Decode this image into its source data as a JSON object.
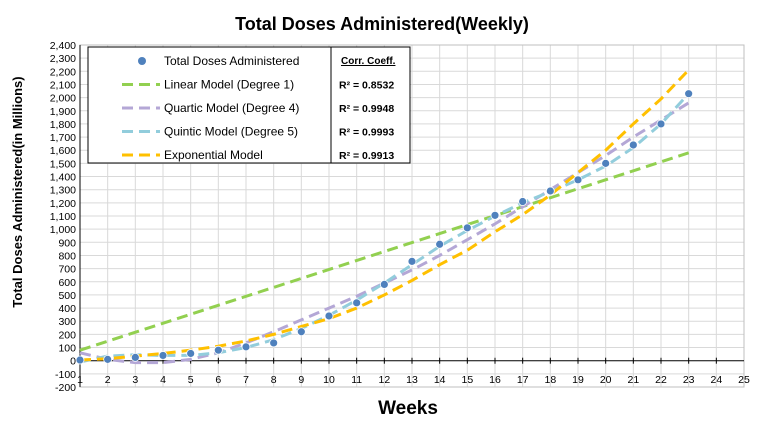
{
  "chart_data": {
    "type": "scatter",
    "title": "Total Doses Administered(Weekly)",
    "xlabel": "Weeks",
    "ylabel": "Total Doses Administered(in Millions)",
    "xlim": [
      1,
      25
    ],
    "ylim": [
      -200,
      2400
    ],
    "xticks": [
      "1",
      "2",
      "3",
      "4",
      "5",
      "6",
      "7",
      "8",
      "9",
      "10",
      "11",
      "12",
      "13",
      "14",
      "15",
      "16",
      "17",
      "18",
      "19",
      "20",
      "21",
      "22",
      "23",
      "24",
      "25"
    ],
    "yticks": [
      "-200",
      "-100",
      "0",
      "100",
      "200",
      "300",
      "400",
      "500",
      "600",
      "700",
      "800",
      "900",
      "1,000",
      "1,100",
      "1,200",
      "1,300",
      "1,400",
      "1,500",
      "1,600",
      "1,700",
      "1,800",
      "1,900",
      "2,000",
      "2,100",
      "2,200",
      "2,300",
      "2,400"
    ],
    "grid": true,
    "legend_position": "top-left",
    "legend_header": "Corr. Coeff.",
    "series": [
      {
        "name": "Total Doses Administered",
        "kind": "points",
        "color": "#4f81bd",
        "x": [
          1,
          2,
          3,
          4,
          5,
          6,
          7,
          8,
          9,
          10,
          11,
          12,
          13,
          14,
          15,
          16,
          17,
          18,
          19,
          20,
          21,
          22,
          23
        ],
        "y": [
          5,
          10,
          25,
          40,
          55,
          80,
          105,
          135,
          220,
          340,
          440,
          580,
          755,
          885,
          1010,
          1105,
          1210,
          1290,
          1375,
          1500,
          1640,
          1800,
          2030
        ]
      },
      {
        "name": "Linear Model (Degree 1)",
        "kind": "line",
        "color": "#92d050",
        "r2": "R² = 0.8532",
        "x": [
          1,
          23
        ],
        "y": [
          80,
          1580
        ]
      },
      {
        "name": "Quartic Model (Degree 4)",
        "kind": "line",
        "color": "#b4a7d6",
        "r2": "R² = 0.9948",
        "x": [
          1,
          2,
          3,
          4,
          5,
          6,
          7,
          8,
          9,
          10,
          11,
          12,
          13,
          14,
          15,
          16,
          17,
          18,
          19,
          20,
          21,
          22,
          23
        ],
        "y": [
          60,
          10,
          -15,
          -15,
          10,
          60,
          135,
          220,
          310,
          400,
          490,
          590,
          690,
          800,
          920,
          1040,
          1170,
          1300,
          1430,
          1560,
          1700,
          1830,
          1960
        ]
      },
      {
        "name": "Quintic  Model (Degree 5)",
        "kind": "line",
        "color": "#92cddc",
        "r2": "R² = 0.9993",
        "x": [
          1,
          2,
          3,
          4,
          5,
          6,
          7,
          8,
          9,
          10,
          11,
          12,
          13,
          14,
          15,
          16,
          17,
          18,
          19,
          20,
          21,
          22,
          23
        ],
        "y": [
          -10,
          35,
          45,
          40,
          40,
          60,
          100,
          160,
          245,
          345,
          460,
          590,
          730,
          870,
          990,
          1100,
          1200,
          1285,
          1375,
          1480,
          1620,
          1800,
          2030
        ]
      },
      {
        "name": "Exponential Model",
        "kind": "line",
        "color": "#ffc000",
        "r2": "R² = 0.9913",
        "x": [
          1,
          2,
          3,
          4,
          5,
          6,
          7,
          8,
          9,
          10,
          11,
          12,
          13,
          14,
          15,
          16,
          17,
          18,
          19,
          20,
          21,
          22,
          23
        ],
        "y": [
          5,
          15,
          35,
          55,
          80,
          110,
          150,
          200,
          260,
          320,
          400,
          500,
          610,
          730,
          840,
          980,
          1110,
          1260,
          1430,
          1600,
          1800,
          1990,
          2210
        ]
      }
    ]
  }
}
